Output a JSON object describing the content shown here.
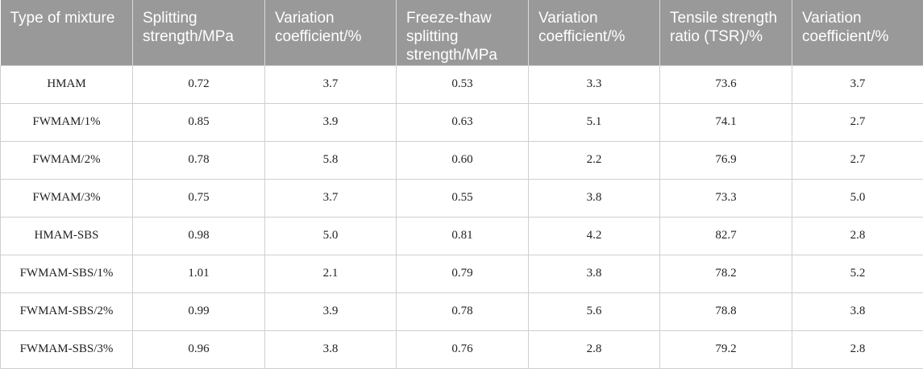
{
  "table": {
    "headers": [
      "Type of mixture",
      "Splitting strength/MPa",
      "Variation coefficient/%",
      "Freeze-thaw splitting strength/MPa",
      "Variation coefficient/%",
      "Tensile strength ratio (TSR)/%",
      "Variation coefficient/%"
    ],
    "rows": [
      [
        "HMAM",
        "0.72",
        "3.7",
        "0.53",
        "3.3",
        "73.6",
        "3.7"
      ],
      [
        "FWMAM/1%",
        "0.85",
        "3.9",
        "0.63",
        "5.1",
        "74.1",
        "2.7"
      ],
      [
        "FWMAM/2%",
        "0.78",
        "5.8",
        "0.60",
        "2.2",
        "76.9",
        "2.7"
      ],
      [
        "FWMAM/3%",
        "0.75",
        "3.7",
        "0.55",
        "3.8",
        "73.3",
        "5.0"
      ],
      [
        "HMAM-SBS",
        "0.98",
        "5.0",
        "0.81",
        "4.2",
        "82.7",
        "2.8"
      ],
      [
        "FWMAM-SBS/1%",
        "1.01",
        "2.1",
        "0.79",
        "3.8",
        "78.2",
        "5.2"
      ],
      [
        "FWMAM-SBS/2%",
        "0.99",
        "3.9",
        "0.78",
        "5.6",
        "78.8",
        "3.8"
      ],
      [
        "FWMAM-SBS/3%",
        "0.96",
        "3.8",
        "0.76",
        "2.8",
        "79.2",
        "2.8"
      ]
    ]
  }
}
